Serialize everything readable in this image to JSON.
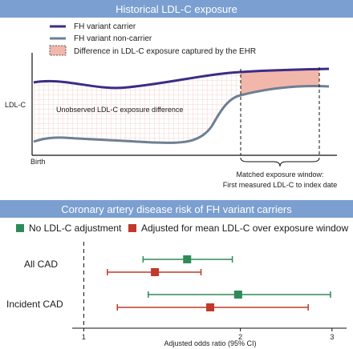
{
  "top_panel": {
    "title": "Historical LDL-C exposure",
    "legend": {
      "carrier": "FH variant carrier",
      "non_carrier": "FH variant non-carrier",
      "difference": "Difference in LDL-C exposure captured by the EHR"
    },
    "y_axis_label": "LDL-C",
    "x_axis_label": "Birth",
    "unobserved_label": "Unobserved LDL-C exposure difference",
    "window_caption_line1": "Matched exposure window:",
    "window_caption_line2": "First measured LDL-C to index date",
    "colors": {
      "carrier": "#3b2d87",
      "non_carrier": "#6e7f93",
      "difference_fill": "#f2b7ab",
      "hatch": "#f0c9c2"
    }
  },
  "bottom_panel": {
    "title": "Coronary artery disease risk of FH variant carriers",
    "legend": {
      "unadjusted": "No LDL-C adjustment",
      "adjusted": "Adjusted for mean LDL-C over exposure window"
    },
    "xlabel": "Adjusted odds ratio (95% CI)",
    "colors": {
      "unadjusted": "#2e8b57",
      "adjusted": "#c0392b"
    }
  },
  "chart_data": {
    "type": "scatter",
    "title": "Coronary artery disease risk of FH variant carriers",
    "xlabel": "Adjusted odds ratio (95% CI)",
    "ylabel": "",
    "x_scale": "log",
    "xlim": [
      0.95,
      3.2
    ],
    "x_ticks": [
      1,
      2,
      3
    ],
    "reference_line": 1,
    "categories": [
      "All CAD",
      "Incident CAD"
    ],
    "series": [
      {
        "name": "No LDL-C adjustment",
        "color": "#2e8b57",
        "points": [
          {
            "category": "All CAD",
            "or": 1.58,
            "lo": 1.3,
            "hi": 1.93
          },
          {
            "category": "Incident CAD",
            "or": 1.98,
            "lo": 1.33,
            "hi": 2.98
          }
        ]
      },
      {
        "name": "Adjusted for mean LDL-C over exposure window",
        "color": "#c0392b",
        "points": [
          {
            "category": "All CAD",
            "or": 1.37,
            "lo": 1.11,
            "hi": 1.68
          },
          {
            "category": "Incident CAD",
            "or": 1.75,
            "lo": 1.16,
            "hi": 2.7
          }
        ]
      }
    ]
  }
}
